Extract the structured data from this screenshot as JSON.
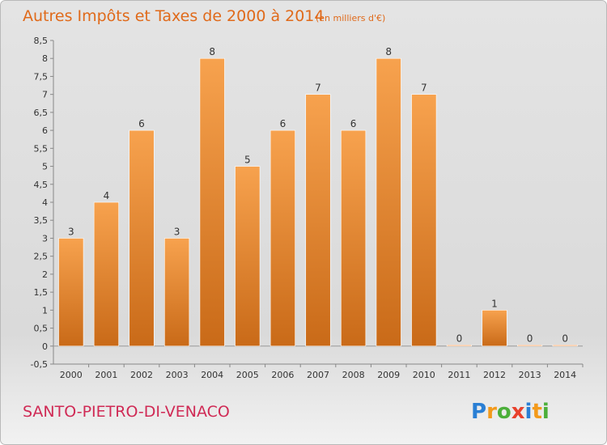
{
  "chart_data": {
    "type": "bar",
    "title": "Autres Impôts et Taxes de 2000 à 2014",
    "subtitle": "(en milliers d'€)",
    "categories": [
      "2000",
      "2001",
      "2002",
      "2003",
      "2004",
      "2005",
      "2006",
      "2007",
      "2008",
      "2009",
      "2010",
      "2011",
      "2012",
      "2013",
      "2014"
    ],
    "values": [
      3,
      4,
      6,
      3,
      8,
      5,
      6,
      7,
      6,
      8,
      7,
      0,
      1,
      0,
      0
    ],
    "ylim": [
      -0.5,
      8.5
    ],
    "yticks": [
      "-0,5",
      "0",
      "0,5",
      "1",
      "1,5",
      "2",
      "2,5",
      "3",
      "3,5",
      "4",
      "4,5",
      "5",
      "5,5",
      "6",
      "6,5",
      "7",
      "7,5",
      "8",
      "8,5"
    ],
    "grid": false,
    "bar_color": "#f08a2e"
  },
  "place_name": "SANTO-PIETRO-DI-VENACO",
  "logo": {
    "letters": [
      "P",
      "r",
      "o",
      "x",
      "i",
      "t",
      "i"
    ],
    "colors": [
      "#2a7fd4",
      "#f39a1b",
      "#4caf3a",
      "#e8412c",
      "#2a7fd4",
      "#f39a1b",
      "#4caf3a"
    ]
  }
}
